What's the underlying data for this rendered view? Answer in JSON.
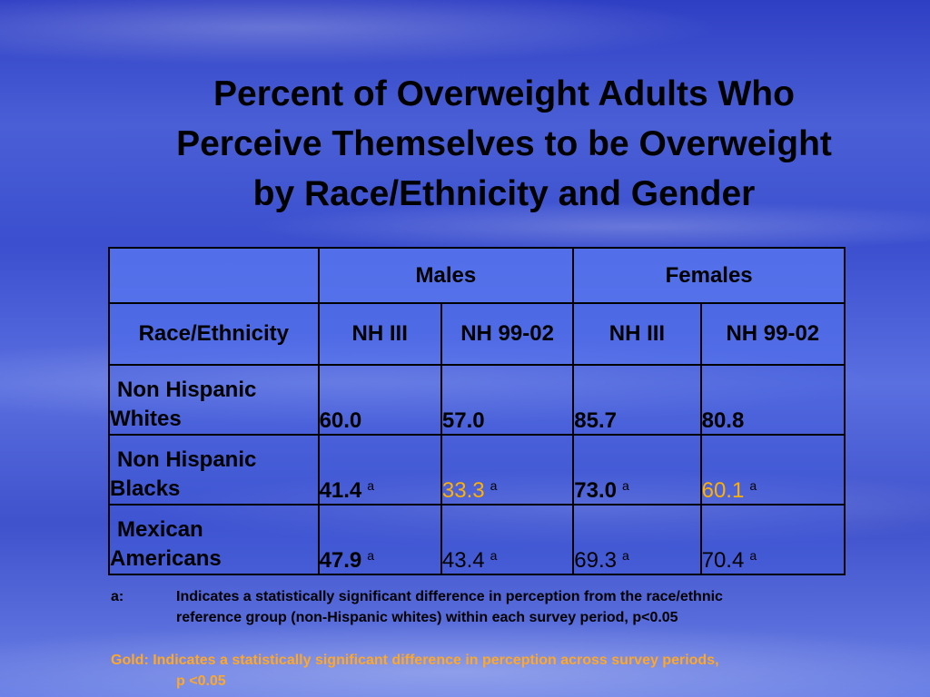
{
  "title": {
    "line1": "Percent of Overweight Adults Who",
    "line2": "Perceive Themselves to be Overweight",
    "line3": "by Race/Ethnicity and Gender"
  },
  "table": {
    "groups": [
      "Males",
      "Females"
    ],
    "row_header": "Race/Ethnicity",
    "columns": [
      "NH III",
      "NH 99-02",
      "NH III",
      "NH 99-02"
    ],
    "rows": [
      {
        "label_line1": "Non Hispanic",
        "label_line2": "Whites",
        "cells": [
          {
            "value": "60.0",
            "bold": true,
            "gold": false,
            "mark": ""
          },
          {
            "value": "57.0",
            "bold": true,
            "gold": false,
            "mark": ""
          },
          {
            "value": "85.7",
            "bold": true,
            "gold": false,
            "mark": ""
          },
          {
            "value": "80.8",
            "bold": true,
            "gold": false,
            "mark": ""
          }
        ]
      },
      {
        "label_line1": "Non Hispanic",
        "label_line2": "Blacks",
        "cells": [
          {
            "value": "41.4",
            "bold": true,
            "gold": false,
            "mark": "a"
          },
          {
            "value": "33.3",
            "bold": false,
            "gold": true,
            "mark": "a"
          },
          {
            "value": "73.0",
            "bold": true,
            "gold": false,
            "mark": "a"
          },
          {
            "value": "60.1",
            "bold": false,
            "gold": true,
            "mark": "a"
          }
        ]
      },
      {
        "label_line1": "Mexican",
        "label_line2": "Americans",
        "cells": [
          {
            "value": "47.9",
            "bold": true,
            "gold": false,
            "mark": "a"
          },
          {
            "value": "43.4",
            "bold": false,
            "gold": false,
            "mark": "a"
          },
          {
            "value": "69.3",
            "bold": false,
            "gold": false,
            "mark": "a"
          },
          {
            "value": "70.4",
            "bold": false,
            "gold": false,
            "mark": "a"
          }
        ]
      }
    ]
  },
  "footnotes": {
    "a_key": "a:",
    "a_line1": "Indicates a statistically significant difference in perception from the race/ethnic",
    "a_line2": "reference group (non-Hispanic whites) within each survey period, p<0.05",
    "gold_line1": "Gold:  Indicates a statistically significant difference in perception across survey periods,",
    "gold_line2": "p <0.05"
  },
  "colors": {
    "gold": "#ffb000",
    "footnote_gold": "#ffa726"
  }
}
